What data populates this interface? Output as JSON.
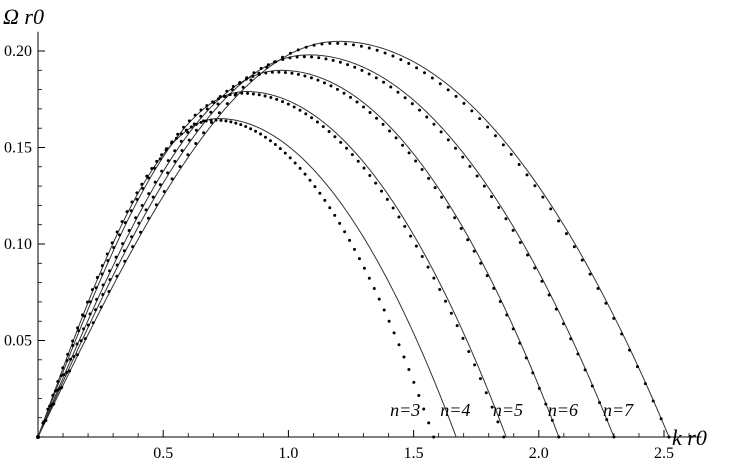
{
  "chart_data": {
    "type": "line",
    "xlabel": "k r0",
    "ylabel": "Ω r0",
    "xlim": [
      0,
      2.65
    ],
    "ylim": [
      0,
      0.21
    ],
    "xticks": [
      "0.5",
      "1.0",
      "1.5",
      "2.0",
      "2.5"
    ],
    "xtick_values": [
      0.5,
      1.0,
      1.5,
      2.0,
      2.5
    ],
    "yticks": [
      "0.05",
      "0.10",
      "0.15",
      "0.20"
    ],
    "ytick_values": [
      0.05,
      0.1,
      0.15,
      0.2
    ],
    "curve_labels": [
      "n=3",
      "n=4",
      "n=5",
      "n=6",
      "n=7"
    ],
    "series": [
      {
        "name": "n=3",
        "peak_x": 0.72,
        "peak_y": 0.165,
        "zero_x": 1.67,
        "dots_zero_x": 1.58
      },
      {
        "name": "n=4",
        "peak_x": 0.83,
        "peak_y": 0.179,
        "zero_x": 1.87,
        "dots_zero_x": 1.86
      },
      {
        "name": "n=5",
        "peak_x": 0.97,
        "peak_y": 0.19,
        "zero_x": 2.08,
        "dots_zero_x": 2.08
      },
      {
        "name": "n=6",
        "peak_x": 1.08,
        "peak_y": 0.198,
        "zero_x": 2.3,
        "dots_zero_x": 2.3
      },
      {
        "name": "n=7",
        "peak_x": 1.2,
        "peak_y": 0.205,
        "zero_x": 2.52,
        "dots_zero_x": 2.52
      }
    ],
    "legend": "none",
    "grid": false,
    "line_color": "#333333",
    "dot_color": "#000000"
  }
}
